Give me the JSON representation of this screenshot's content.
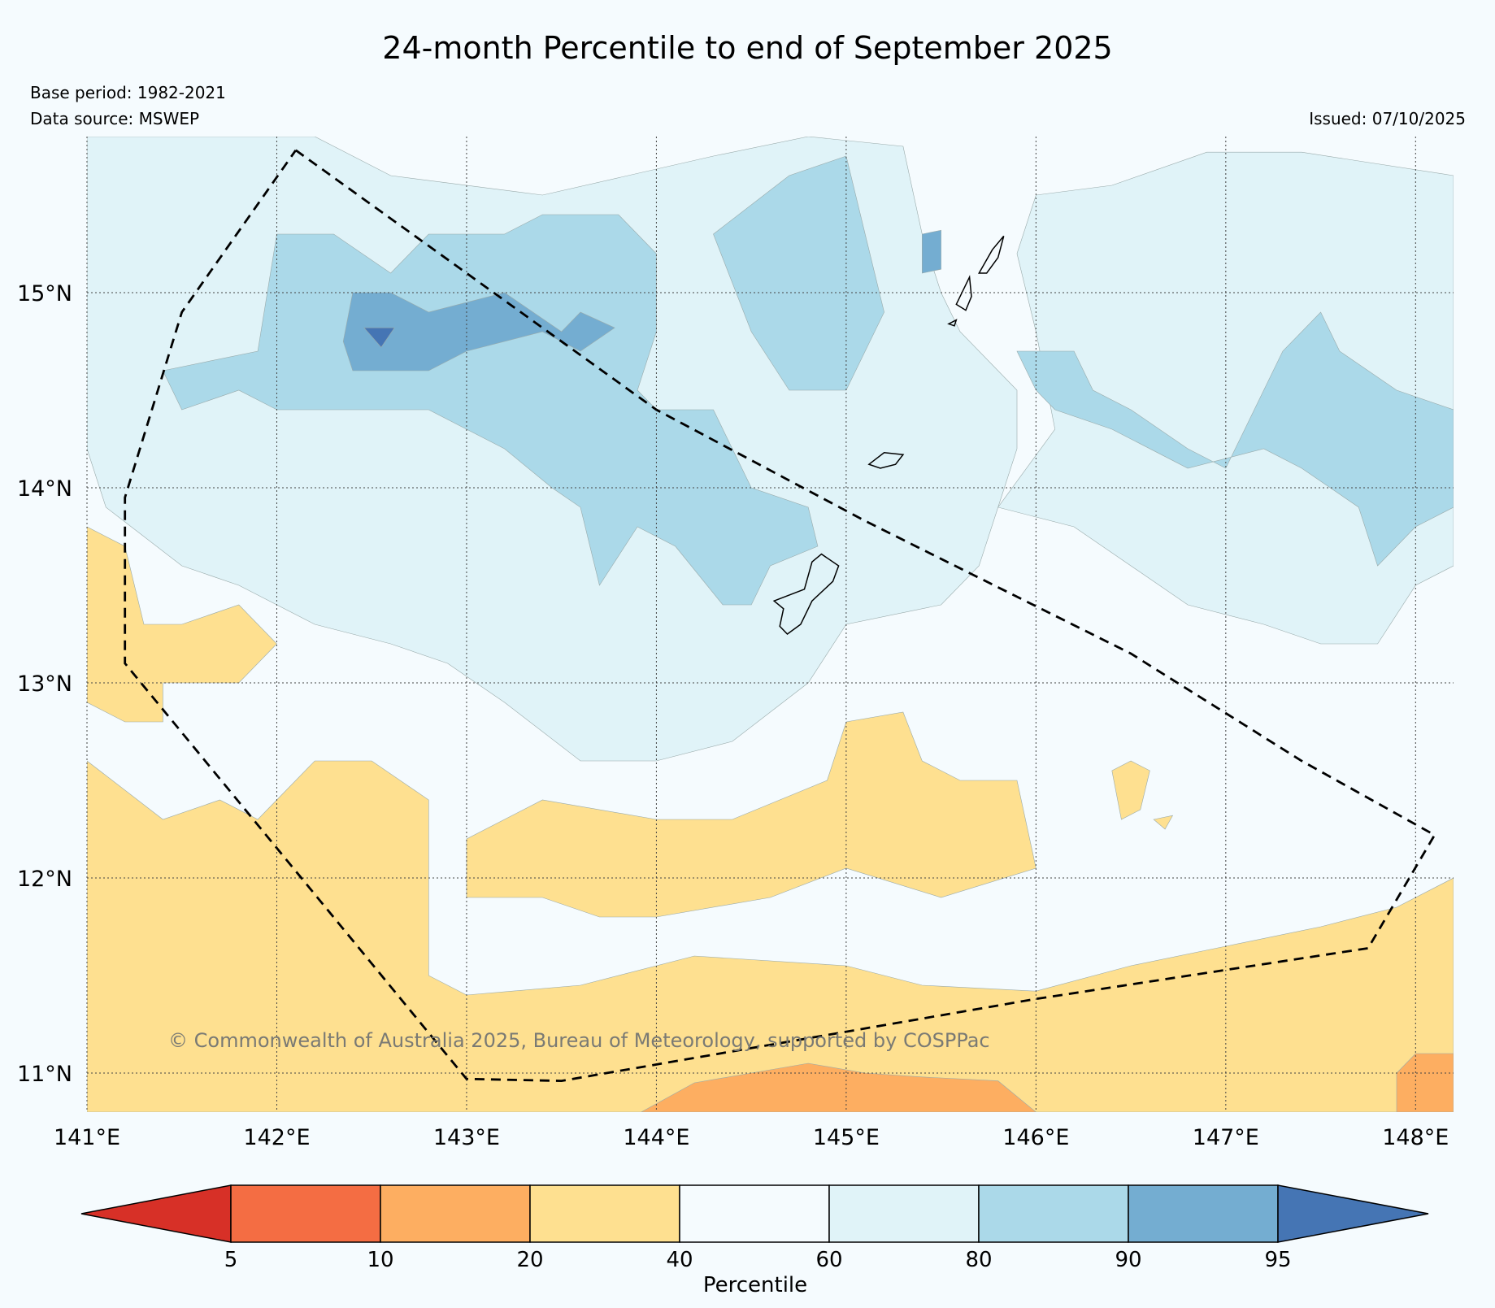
{
  "title": "24-month Percentile to end of September 2025",
  "meta": {
    "base_period": "Base period: 1982-2021",
    "data_source": "Data source: MSWEP",
    "issued": "Issued: 07/10/2025"
  },
  "map": {
    "lon_range": [
      141.0,
      148.2
    ],
    "lat_range": [
      10.8,
      15.8
    ],
    "lon_ticks": [
      {
        "value": 141,
        "label": "141°E"
      },
      {
        "value": 142,
        "label": "142°E"
      },
      {
        "value": 143,
        "label": "143°E"
      },
      {
        "value": 144,
        "label": "144°E"
      },
      {
        "value": 145,
        "label": "145°E"
      },
      {
        "value": 146,
        "label": "146°E"
      },
      {
        "value": 147,
        "label": "147°E"
      },
      {
        "value": 148,
        "label": "148°E"
      }
    ],
    "lat_ticks": [
      {
        "value": 15,
        "label": "15°N"
      },
      {
        "value": 14,
        "label": "14°N"
      },
      {
        "value": 13,
        "label": "13°N"
      },
      {
        "value": 12,
        "label": "12°N"
      },
      {
        "value": 11,
        "label": "11°N"
      }
    ],
    "copyright": "© Commonwealth of Australia 2025, Bureau of Meteorology, supported by COSPPac",
    "boundary_polygon": [
      [
        142.1,
        15.73
      ],
      [
        143.0,
        15.1
      ],
      [
        144.0,
        14.4
      ],
      [
        145.1,
        13.83
      ],
      [
        146.5,
        13.15
      ],
      [
        147.4,
        12.6
      ],
      [
        148.1,
        12.22
      ],
      [
        147.75,
        11.64
      ],
      [
        146.0,
        11.38
      ],
      [
        143.5,
        10.96
      ],
      [
        143.0,
        10.97
      ],
      [
        141.2,
        13.1
      ],
      [
        141.2,
        13.95
      ],
      [
        141.5,
        14.9
      ],
      [
        142.1,
        15.73
      ]
    ],
    "islands": [
      {
        "name": "Guam",
        "outline": [
          [
            144.62,
            13.42
          ],
          [
            144.78,
            13.48
          ],
          [
            144.82,
            13.62
          ],
          [
            144.87,
            13.66
          ],
          [
            144.96,
            13.6
          ],
          [
            144.93,
            13.52
          ],
          [
            144.82,
            13.42
          ],
          [
            144.76,
            13.3
          ],
          [
            144.69,
            13.25
          ],
          [
            144.65,
            13.29
          ],
          [
            144.67,
            13.38
          ]
        ]
      },
      {
        "name": "Rota",
        "outline": [
          [
            145.12,
            14.12
          ],
          [
            145.2,
            14.18
          ],
          [
            145.3,
            14.17
          ],
          [
            145.26,
            14.12
          ],
          [
            145.18,
            14.1
          ]
        ]
      },
      {
        "name": "Tinian",
        "outline": [
          [
            145.58,
            14.94
          ],
          [
            145.65,
            15.08
          ],
          [
            145.66,
            14.98
          ],
          [
            145.63,
            14.91
          ]
        ]
      },
      {
        "name": "Saipan",
        "outline": [
          [
            145.7,
            15.1
          ],
          [
            145.77,
            15.22
          ],
          [
            145.83,
            15.29
          ],
          [
            145.8,
            15.18
          ],
          [
            145.74,
            15.1
          ]
        ]
      },
      {
        "name": "Aguijan",
        "outline": [
          [
            145.54,
            14.84
          ],
          [
            145.58,
            14.86
          ],
          [
            145.57,
            14.83
          ]
        ]
      }
    ]
  },
  "colorbar": {
    "title": "Percentile",
    "boundaries": [
      5,
      10,
      20,
      40,
      60,
      80,
      90,
      95
    ],
    "colors": {
      "below_5": "#d73027",
      "5_10": "#f46d43",
      "10_20": "#fdae61",
      "20_40": "#fee090",
      "40_60": "#f5fbfe",
      "60_80": "#e0f3f8",
      "80_90": "#abd9e9",
      "90_95": "#74add1",
      "above_95": "#4575b4"
    }
  },
  "regions": [
    {
      "class": "20_40",
      "outline": [
        [
          141.0,
          13.8
        ],
        [
          141.2,
          13.7
        ],
        [
          141.3,
          13.3
        ],
        [
          141.5,
          13.3
        ],
        [
          141.8,
          13.4
        ],
        [
          142.0,
          13.2
        ],
        [
          141.8,
          13.0
        ],
        [
          141.4,
          13.0
        ],
        [
          141.4,
          12.8
        ],
        [
          141.2,
          12.8
        ],
        [
          141.0,
          12.9
        ]
      ]
    },
    {
      "class": "20_40",
      "outline": [
        [
          141.0,
          12.6
        ],
        [
          141.4,
          12.3
        ],
        [
          141.7,
          12.4
        ],
        [
          141.9,
          12.3
        ],
        [
          142.2,
          12.6
        ],
        [
          142.5,
          12.6
        ],
        [
          142.8,
          12.4
        ],
        [
          142.8,
          11.5
        ],
        [
          143.0,
          11.4
        ],
        [
          143.6,
          11.45
        ],
        [
          144.2,
          11.6
        ],
        [
          145.0,
          11.55
        ],
        [
          145.4,
          11.45
        ],
        [
          146.0,
          11.42
        ],
        [
          146.5,
          11.55
        ],
        [
          147.0,
          11.65
        ],
        [
          147.5,
          11.75
        ],
        [
          147.9,
          11.85
        ],
        [
          148.2,
          12.0
        ],
        [
          148.2,
          10.8
        ],
        [
          141.0,
          10.8
        ]
      ]
    },
    {
      "class": "20_40",
      "outline": [
        [
          143.0,
          12.2
        ],
        [
          143.4,
          12.4
        ],
        [
          144.0,
          12.3
        ],
        [
          144.4,
          12.3
        ],
        [
          144.9,
          12.5
        ],
        [
          145.0,
          12.8
        ],
        [
          145.3,
          12.85
        ],
        [
          145.4,
          12.6
        ],
        [
          145.6,
          12.5
        ],
        [
          145.9,
          12.5
        ],
        [
          146.0,
          12.05
        ],
        [
          145.5,
          11.9
        ],
        [
          145.0,
          12.05
        ],
        [
          144.6,
          11.9
        ],
        [
          144.0,
          11.8
        ],
        [
          143.7,
          11.8
        ],
        [
          143.4,
          11.9
        ],
        [
          143.0,
          11.9
        ]
      ]
    },
    {
      "class": "20_40",
      "outline": [
        [
          146.4,
          12.55
        ],
        [
          146.5,
          12.6
        ],
        [
          146.6,
          12.55
        ],
        [
          146.55,
          12.35
        ],
        [
          146.45,
          12.3
        ]
      ]
    },
    {
      "class": "20_40",
      "outline": [
        [
          146.62,
          12.3
        ],
        [
          146.72,
          12.32
        ],
        [
          146.68,
          12.25
        ]
      ]
    },
    {
      "class": "10_20",
      "outline": [
        [
          143.92,
          10.8
        ],
        [
          144.2,
          10.95
        ],
        [
          144.5,
          11.0
        ],
        [
          144.8,
          11.05
        ],
        [
          145.1,
          11.0
        ],
        [
          145.4,
          10.98
        ],
        [
          145.8,
          10.96
        ],
        [
          146.0,
          10.8
        ]
      ]
    },
    {
      "class": "10_20",
      "outline": [
        [
          147.9,
          10.8
        ],
        [
          147.9,
          11.0
        ],
        [
          148.0,
          11.1
        ],
        [
          148.2,
          11.1
        ],
        [
          148.2,
          10.8
        ]
      ]
    },
    {
      "class": "60_80",
      "outline": [
        [
          141.0,
          15.8
        ],
        [
          142.2,
          15.8
        ],
        [
          142.6,
          15.6
        ],
        [
          143.4,
          15.5
        ],
        [
          144.3,
          15.7
        ],
        [
          144.8,
          15.8
        ],
        [
          145.3,
          15.75
        ],
        [
          145.4,
          15.3
        ],
        [
          145.5,
          15.0
        ],
        [
          145.6,
          14.8
        ],
        [
          145.9,
          14.5
        ],
        [
          145.9,
          14.2
        ],
        [
          145.8,
          13.9
        ],
        [
          145.7,
          13.6
        ],
        [
          145.5,
          13.4
        ],
        [
          145.0,
          13.3
        ],
        [
          144.8,
          13.0
        ],
        [
          144.4,
          12.7
        ],
        [
          144.0,
          12.6
        ],
        [
          143.6,
          12.6
        ],
        [
          143.2,
          12.9
        ],
        [
          142.9,
          13.1
        ],
        [
          142.6,
          13.2
        ],
        [
          142.2,
          13.3
        ],
        [
          141.8,
          13.5
        ],
        [
          141.5,
          13.6
        ],
        [
          141.1,
          13.9
        ],
        [
          141.0,
          14.2
        ]
      ]
    },
    {
      "class": "60_80",
      "outline": [
        [
          146.0,
          15.5
        ],
        [
          146.4,
          15.55
        ],
        [
          146.9,
          15.72
        ],
        [
          147.4,
          15.72
        ],
        [
          148.2,
          15.6
        ],
        [
          148.2,
          13.6
        ],
        [
          148.0,
          13.5
        ],
        [
          147.8,
          13.2
        ],
        [
          147.5,
          13.2
        ],
        [
          147.2,
          13.3
        ],
        [
          146.8,
          13.4
        ],
        [
          146.2,
          13.8
        ],
        [
          145.8,
          13.9
        ],
        [
          146.1,
          14.3
        ],
        [
          146.0,
          14.8
        ],
        [
          145.9,
          15.2
        ]
      ]
    },
    {
      "class": "80_90",
      "outline": [
        [
          141.4,
          14.6
        ],
        [
          141.9,
          14.7
        ],
        [
          142.0,
          15.3
        ],
        [
          142.3,
          15.3
        ],
        [
          142.6,
          15.1
        ],
        [
          142.8,
          15.3
        ],
        [
          143.2,
          15.3
        ],
        [
          143.4,
          15.4
        ],
        [
          143.8,
          15.4
        ],
        [
          144.0,
          15.2
        ],
        [
          144.0,
          14.8
        ],
        [
          143.9,
          14.5
        ],
        [
          144.0,
          14.4
        ],
        [
          144.3,
          14.4
        ],
        [
          144.5,
          14.0
        ],
        [
          144.8,
          13.9
        ],
        [
          144.85,
          13.7
        ],
        [
          144.6,
          13.6
        ],
        [
          144.5,
          13.4
        ],
        [
          144.35,
          13.4
        ],
        [
          144.1,
          13.7
        ],
        [
          143.9,
          13.8
        ],
        [
          143.7,
          13.5
        ],
        [
          143.6,
          13.9
        ],
        [
          143.45,
          14.0
        ],
        [
          143.2,
          14.2
        ],
        [
          143.0,
          14.3
        ],
        [
          142.8,
          14.4
        ],
        [
          142.4,
          14.4
        ],
        [
          142.0,
          14.4
        ],
        [
          141.8,
          14.5
        ],
        [
          141.5,
          14.4
        ]
      ]
    },
    {
      "class": "80_90",
      "outline": [
        [
          144.3,
          15.3
        ],
        [
          144.7,
          15.6
        ],
        [
          145.0,
          15.7
        ],
        [
          145.1,
          15.3
        ],
        [
          145.2,
          14.9
        ],
        [
          145.0,
          14.5
        ],
        [
          144.7,
          14.5
        ],
        [
          144.5,
          14.8
        ]
      ]
    },
    {
      "class": "80_90",
      "outline": [
        [
          145.9,
          14.7
        ],
        [
          146.2,
          14.7
        ],
        [
          146.3,
          14.5
        ],
        [
          146.5,
          14.4
        ],
        [
          146.8,
          14.2
        ],
        [
          147.0,
          14.1
        ],
        [
          147.1,
          14.3
        ],
        [
          147.3,
          14.7
        ],
        [
          147.5,
          14.9
        ],
        [
          147.6,
          14.7
        ],
        [
          147.9,
          14.5
        ],
        [
          148.2,
          14.4
        ],
        [
          148.2,
          13.9
        ],
        [
          148.0,
          13.8
        ],
        [
          147.8,
          13.6
        ],
        [
          147.7,
          13.9
        ],
        [
          147.4,
          14.1
        ],
        [
          147.2,
          14.2
        ],
        [
          146.8,
          14.1
        ],
        [
          146.4,
          14.3
        ],
        [
          146.1,
          14.4
        ],
        [
          146.0,
          14.5
        ]
      ]
    },
    {
      "class": "90_95",
      "outline": [
        [
          142.4,
          15.0
        ],
        [
          142.6,
          15.0
        ],
        [
          142.8,
          14.9
        ],
        [
          143.2,
          15.0
        ],
        [
          143.5,
          14.8
        ],
        [
          143.6,
          14.9
        ],
        [
          143.78,
          14.82
        ],
        [
          143.6,
          14.7
        ],
        [
          143.4,
          14.8
        ],
        [
          143.0,
          14.7
        ],
        [
          142.8,
          14.6
        ],
        [
          142.6,
          14.6
        ],
        [
          142.4,
          14.6
        ],
        [
          142.35,
          14.75
        ]
      ]
    },
    {
      "class": "90_95",
      "outline": [
        [
          145.4,
          15.3
        ],
        [
          145.5,
          15.32
        ],
        [
          145.5,
          15.12
        ],
        [
          145.4,
          15.1
        ]
      ]
    },
    {
      "class": "above_95",
      "outline": [
        [
          142.46,
          14.82
        ],
        [
          142.62,
          14.82
        ],
        [
          142.55,
          14.72
        ]
      ]
    }
  ]
}
